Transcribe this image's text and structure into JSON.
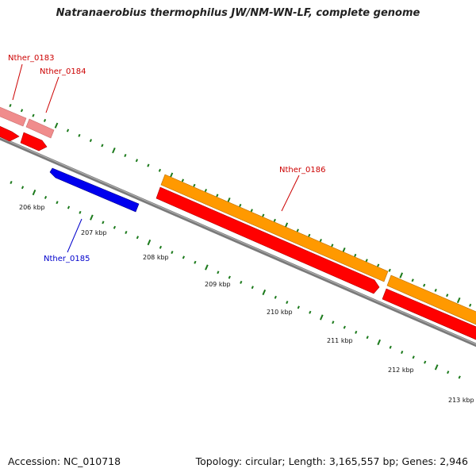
{
  "title": "Natranaerobius thermophilus JW/NM-WN-LF, complete genome",
  "footer": {
    "accession": "Accession: NC_010718",
    "summary": "Topology: circular; Length: 3,165,557 bp; Genes: 2,946"
  },
  "colors": {
    "backbone": "#808080",
    "tick": "#1c7a1c",
    "forward_cds": "#ff0000",
    "forward_gene_faded": "#f08c8c",
    "reverse_cds": "#0000ee",
    "gene_orange": "#ff9900",
    "label_red": "#cc0000",
    "label_blue": "#0000cc"
  },
  "ticks": {
    "scale_labels": [
      "206 kbp",
      "207 kbp",
      "208 kbp",
      "209 kbp",
      "210 kbp",
      "211 kbp",
      "212 kbp",
      "213 kbp"
    ]
  },
  "features": [
    {
      "name": "Nther_0183",
      "strand": "+",
      "color": "red"
    },
    {
      "name": "Nther_0184",
      "strand": "+",
      "color": "red"
    },
    {
      "name": "Nther_0185",
      "strand": "-",
      "color": "blue"
    },
    {
      "name": "Nther_0186",
      "strand": "+",
      "color": "red"
    }
  ]
}
